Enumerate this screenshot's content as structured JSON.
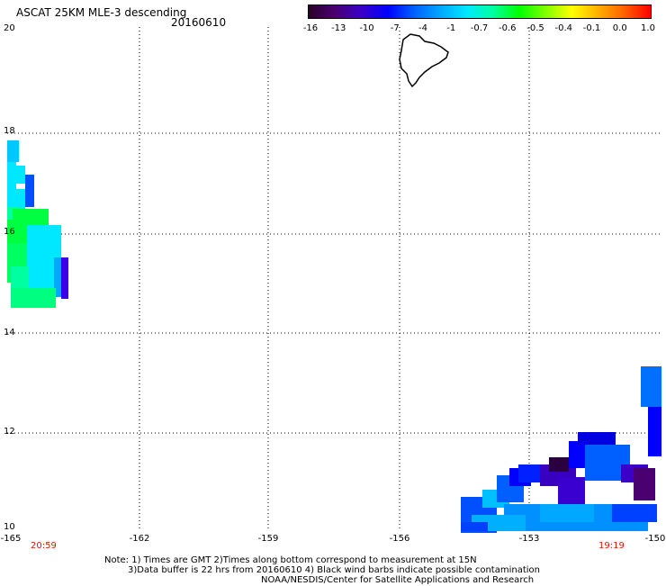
{
  "header": {
    "title": "ASCAT 25KM MLE-3 descending",
    "date": "20160610"
  },
  "colorbar": {
    "ticks": [
      "-16",
      "-13",
      "-10",
      "-7",
      "-4",
      "-1",
      "-0.7",
      "-0.6",
      "-0.5",
      "-0.4",
      "-0.1",
      "0.0",
      "1.0"
    ],
    "colors": [
      "#2a0028",
      "#4a0070",
      "#3a00c8",
      "#0000ff",
      "#0060ff",
      "#00a8ff",
      "#00e8ff",
      "#00ffa0",
      "#00ff00",
      "#80ff00",
      "#ffff00",
      "#ffb000",
      "#ff6000",
      "#ff0000"
    ]
  },
  "axes": {
    "lat_labels": [
      "20",
      "18",
      "16",
      "14",
      "12",
      "10"
    ],
    "lon_labels": [
      "-165",
      "-162",
      "-159",
      "-156",
      "-153",
      "-150"
    ]
  },
  "times": {
    "left": "20:59",
    "right": "19:19"
  },
  "notes": {
    "line1": "Note: 1) Times are GMT 2)Times along bottom correspond to measurement at 15N",
    "line2": "3)Data buffer is 22 hrs from 20160610 4) Black wind barbs indicate possible contamination",
    "line3": "NOAA/NESDIS/Center for Satellite Applications and Research"
  }
}
